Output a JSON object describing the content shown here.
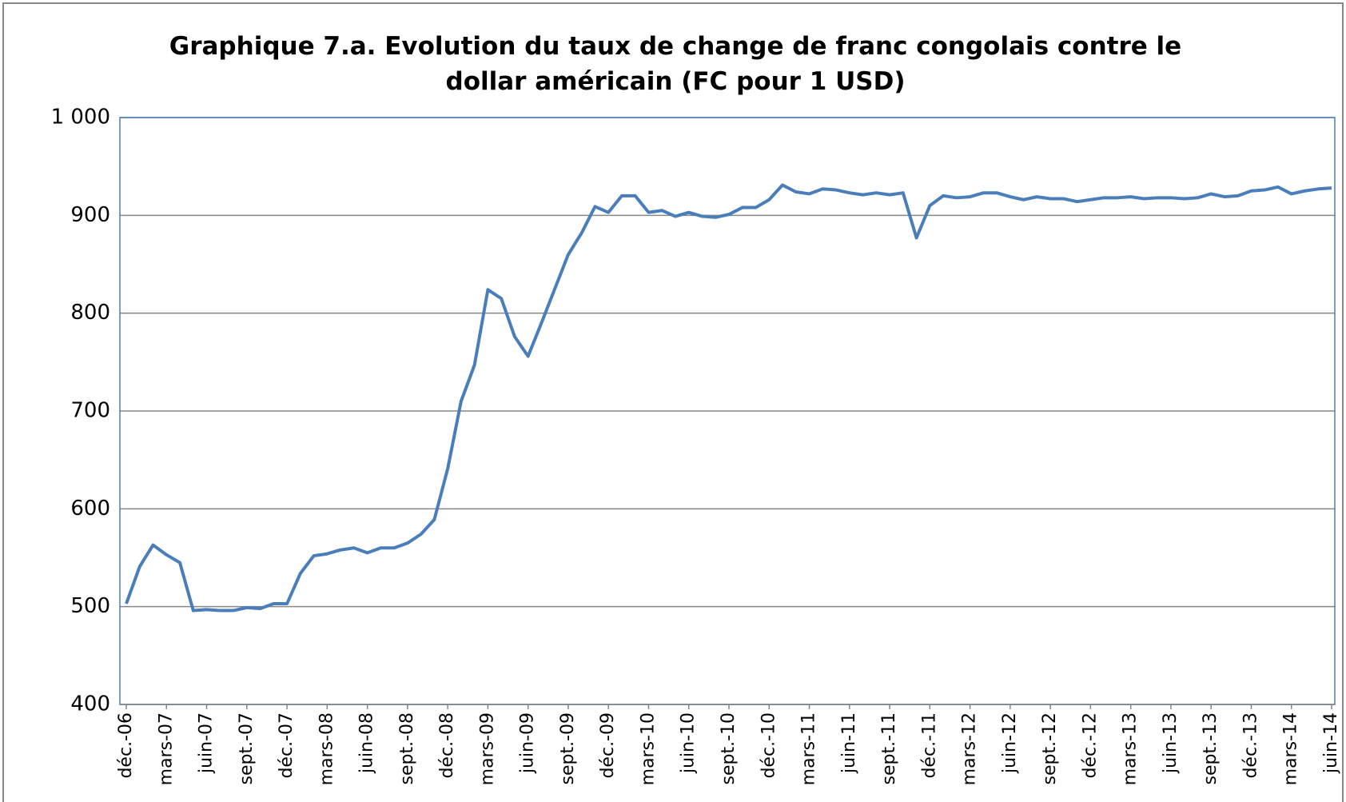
{
  "chart_data": {
    "type": "line",
    "title": "Graphique 7.a. Evolution du taux de change de franc congolais contre le dollar américain (FC pour 1 USD)",
    "categories": [
      "déc.-06",
      null,
      null,
      "mars-07",
      null,
      null,
      "juin-07",
      null,
      null,
      "sept.-07",
      null,
      null,
      "déc.-07",
      null,
      null,
      "mars-08",
      null,
      null,
      "juin-08",
      null,
      null,
      "sept.-08",
      null,
      null,
      "déc.-08",
      null,
      null,
      "mars-09",
      null,
      null,
      "juin-09",
      null,
      null,
      "sept.-09",
      null,
      null,
      "déc.-09",
      null,
      null,
      "mars-10",
      null,
      null,
      "juin-10",
      null,
      null,
      "sept.-10",
      null,
      null,
      "déc.-10",
      null,
      null,
      "mars-11",
      null,
      null,
      "juin-11",
      null,
      null,
      "sept.-11",
      null,
      null,
      "déc.-11",
      null,
      null,
      "mars-12",
      null,
      null,
      "juin-12",
      null,
      null,
      "sept.-12",
      null,
      null,
      "déc.-12",
      null,
      null,
      "mars-13",
      null,
      null,
      "juin-13",
      null,
      null,
      "sept.-13",
      null,
      null,
      "déc.-13",
      null,
      null,
      "mars-14",
      null,
      null,
      "juin-14"
    ],
    "values": [
      503,
      541,
      563,
      553,
      545,
      496,
      497,
      496,
      496,
      499,
      498,
      503,
      503,
      534,
      552,
      554,
      558,
      560,
      555,
      560,
      560,
      565,
      574,
      589,
      641,
      710,
      747,
      824,
      815,
      776,
      756,
      790,
      825,
      860,
      882,
      909,
      903,
      920,
      920,
      903,
      905,
      899,
      903,
      899,
      898,
      901,
      908,
      908,
      916,
      931,
      924,
      922,
      927,
      926,
      923,
      921,
      923,
      921,
      923,
      877,
      910,
      920,
      918,
      919,
      923,
      923,
      919,
      916,
      919,
      917,
      917,
      914,
      916,
      918,
      918,
      919,
      917,
      918,
      918,
      917,
      918,
      922,
      919,
      920,
      925,
      926,
      929,
      922,
      925,
      927,
      928
    ],
    "color": "#4a7ebb",
    "ylim": [
      400,
      1000
    ],
    "yticks": [
      400,
      500,
      600,
      700,
      800,
      900,
      {
        "value": 1000,
        "label": "1 000"
      }
    ],
    "grid": true
  }
}
